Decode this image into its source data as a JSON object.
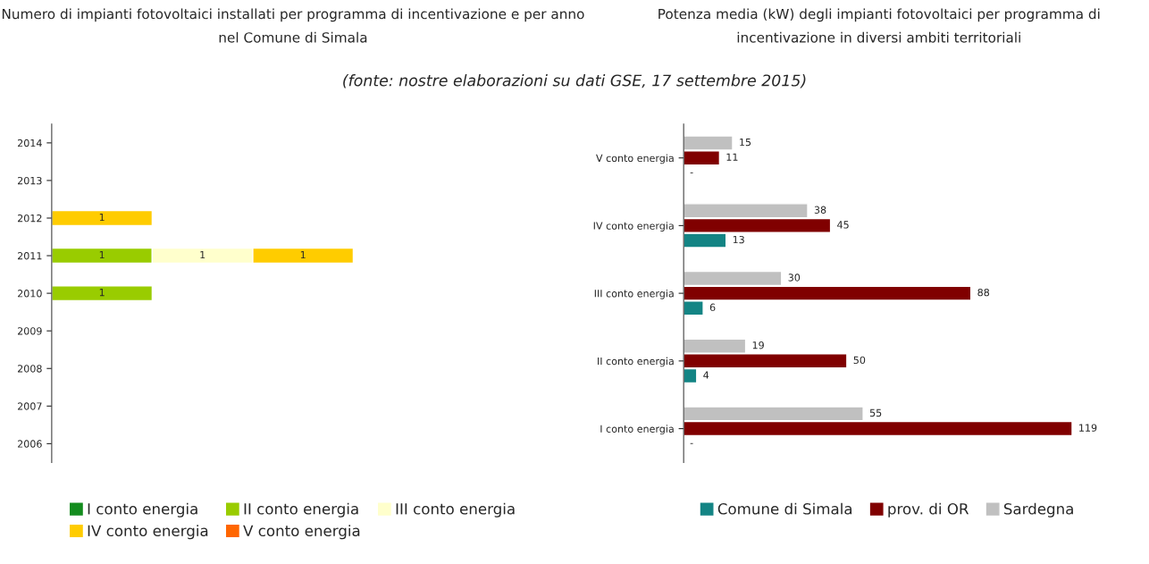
{
  "chart_data": [
    {
      "type": "bar",
      "orientation": "horizontal",
      "stacked": true,
      "title": "Numero di impianti fotovoltaici installati per programma di incentivazione e per anno nel Comune di Simala",
      "annotations": [
        "(fonte: nostre elaborazioni su dati GSE, 17 settembre 2015)"
      ],
      "categories": [
        "2014",
        "2013",
        "2012",
        "2011",
        "2010",
        "2009",
        "2008",
        "2007",
        "2006"
      ],
      "series": [
        {
          "name": "I conto energia",
          "color": "#138c1e",
          "values": [
            null,
            null,
            null,
            null,
            null,
            null,
            null,
            null,
            null
          ]
        },
        {
          "name": "II conto energia",
          "color": "#99cc00",
          "values": [
            null,
            null,
            null,
            1,
            1,
            null,
            null,
            null,
            null
          ]
        },
        {
          "name": "III conto energia",
          "color": "#ffffcc",
          "values": [
            null,
            null,
            null,
            1,
            null,
            null,
            null,
            null,
            null
          ]
        },
        {
          "name": "IV conto energia",
          "color": "#ffcc00",
          "values": [
            null,
            null,
            1,
            1,
            null,
            null,
            null,
            null,
            null
          ]
        },
        {
          "name": "V conto energia",
          "color": "#ff6600",
          "values": [
            null,
            null,
            null,
            null,
            null,
            null,
            null,
            null,
            null
          ]
        }
      ],
      "data_labels": true,
      "legend": "bottom",
      "tick_labels": "y",
      "grid": false
    },
    {
      "type": "bar",
      "orientation": "horizontal",
      "title": "Potenza media (kW) degli impianti fotovoltaici per programma di incentivazione in diversi ambiti territoriali",
      "categories": [
        "V conto energia",
        "IV conto energia",
        "III conto energia",
        "II conto energia",
        "I conto energia"
      ],
      "series": [
        {
          "name": "Comune di Simala",
          "color": "#138484",
          "values": [
            null,
            13,
            6,
            4,
            null
          ],
          "value_labels": [
            "-",
            "13",
            "6",
            "4",
            "-"
          ]
        },
        {
          "name": "prov. di OR",
          "color": "#800000",
          "values": [
            11,
            45,
            88,
            50,
            119
          ],
          "value_labels": [
            "11",
            "45",
            "88",
            "50",
            "119"
          ]
        },
        {
          "name": "Sardegna",
          "color": "#c0c0c0",
          "values": [
            15,
            38,
            30,
            19,
            55
          ],
          "value_labels": [
            "15",
            "38",
            "30",
            "19",
            "55"
          ]
        }
      ],
      "legend": "bottom",
      "tick_labels": "y",
      "grid": false
    }
  ]
}
